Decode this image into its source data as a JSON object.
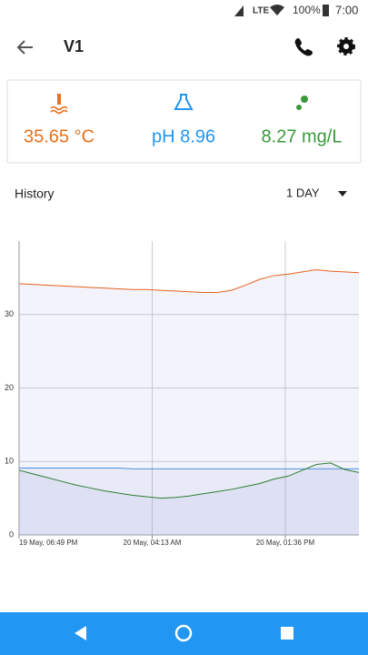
{
  "status_bar": {
    "network": "LTE",
    "battery": "100%",
    "time": "7:00"
  },
  "app_bar": {
    "title": "V1"
  },
  "readings": [
    {
      "text": "35.65 °C",
      "color": "#e8711c"
    },
    {
      "text": "pH 8.96",
      "color": "#2196f3"
    },
    {
      "text": "8.27 mg/L",
      "color": "#3a9a3a"
    }
  ],
  "history": {
    "title": "History",
    "range": "1 DAY"
  },
  "chart_data": {
    "type": "line",
    "x": [
      0,
      1,
      2,
      3,
      4,
      5,
      6,
      7,
      8,
      9,
      10,
      11,
      12,
      13,
      14,
      15,
      16,
      17,
      18,
      19,
      20,
      21,
      22,
      23,
      24
    ],
    "series": [
      {
        "color": "#e8601c",
        "values": [
          34.2,
          34.1,
          34.0,
          33.9,
          33.8,
          33.7,
          33.6,
          33.5,
          33.4,
          33.4,
          33.3,
          33.2,
          33.1,
          33.0,
          33.0,
          33.3,
          34.0,
          34.8,
          35.3,
          35.5,
          35.8,
          36.1,
          35.9,
          35.8,
          35.7
        ]
      },
      {
        "color": "#4a8fe0",
        "values": [
          9.1,
          9.1,
          9.1,
          9.1,
          9.1,
          9.1,
          9.1,
          9.1,
          9.0,
          9.0,
          9.0,
          9.0,
          9.0,
          9.0,
          9.0,
          9.0,
          9.0,
          9.0,
          9.0,
          9.0,
          9.0,
          9.0,
          9.0,
          9.0,
          9.0
        ]
      },
      {
        "color": "#2e7d32",
        "values": [
          8.8,
          8.3,
          7.8,
          7.3,
          6.8,
          6.4,
          6.0,
          5.7,
          5.4,
          5.2,
          5.0,
          5.1,
          5.3,
          5.6,
          5.9,
          6.2,
          6.6,
          7.0,
          7.6,
          8.0,
          8.8,
          9.6,
          9.8,
          8.9,
          8.5
        ]
      }
    ],
    "xlim": [
      0,
      24
    ],
    "xticks": [
      {
        "value": 0,
        "label": "19 May, 06:49 PM"
      },
      {
        "value": 9.4,
        "label": "20 May, 04:13 AM"
      },
      {
        "value": 18.8,
        "label": "20 May, 01:36 PM"
      }
    ],
    "ylim": [
      0,
      40
    ],
    "yticks": [
      0,
      10,
      20,
      30
    ],
    "grid": true
  }
}
